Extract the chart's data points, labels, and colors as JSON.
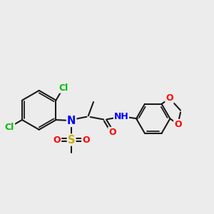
{
  "background_color": "#ececec",
  "bond_color": "#1a1a1a",
  "bond_width": 1.5,
  "atom_colors": {
    "C": "#1a1a1a",
    "H": "#4dbbbb",
    "N": "#0000ff",
    "O": "#ff0000",
    "S": "#ccaa00",
    "Cl": "#00bb00"
  },
  "font_size": 8.5,
  "figsize": [
    3.0,
    3.0
  ],
  "dpi": 100
}
